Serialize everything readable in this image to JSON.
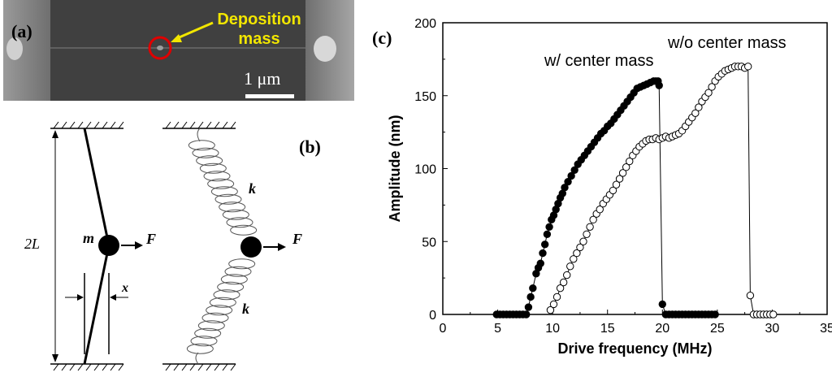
{
  "panel_a": {
    "label": "(a)",
    "annotation_line1": "Deposition",
    "annotation_line2": "mass",
    "scale_bar": "1 μm"
  },
  "panel_b": {
    "label": "(b)",
    "length_label": "2L",
    "mass_label": "m",
    "force_label_left": "F",
    "force_label_right": "F",
    "displacement_label": "x",
    "spring_label_top": "k",
    "spring_label_bottom": "k"
  },
  "panel_c": {
    "label": "(c)",
    "annotation_with": "w/ center mass",
    "annotation_without": "w/o center mass"
  },
  "chart_data": {
    "type": "scatter",
    "xlabel": "Drive frequency (MHz)",
    "ylabel": "Amplitude (nm)",
    "xlim": [
      0,
      35
    ],
    "ylim": [
      0,
      200
    ],
    "xticks": [
      0,
      5,
      10,
      15,
      20,
      25,
      30,
      35
    ],
    "yticks": [
      0,
      50,
      100,
      150,
      200
    ],
    "grid": false,
    "series": [
      {
        "marker": "filled-circle",
        "color": "#000000",
        "x": [
          4.9,
          5.2,
          5.5,
          5.8,
          6.1,
          6.4,
          6.7,
          7.0,
          7.3,
          7.6,
          7.8,
          8.0,
          8.2,
          8.5,
          8.7,
          8.9,
          9.1,
          9.3,
          9.5,
          9.7,
          9.9,
          10.1,
          10.3,
          10.5,
          10.7,
          10.9,
          11.1,
          11.4,
          11.7,
          12.0,
          12.3,
          12.6,
          12.9,
          13.2,
          13.5,
          13.8,
          14.1,
          14.4,
          14.7,
          15.0,
          15.3,
          15.6,
          15.9,
          16.2,
          16.5,
          16.8,
          17.1,
          17.4,
          17.7,
          18.0,
          18.3,
          18.6,
          18.9,
          19.2,
          19.4,
          19.6,
          19.7,
          20.0,
          20.3,
          20.6,
          20.9,
          21.2,
          21.5,
          21.8,
          22.1,
          22.4,
          22.7,
          23.0,
          23.3,
          23.6,
          23.9,
          24.2,
          24.5,
          24.8
        ],
        "y": [
          0,
          0,
          0,
          0,
          0,
          0,
          0,
          0,
          0,
          0,
          5,
          12,
          18,
          28,
          32,
          35,
          42,
          48,
          55,
          60,
          65,
          68,
          72,
          76,
          80,
          83,
          87,
          91,
          95,
          99,
          103,
          106,
          109,
          112,
          115,
          118,
          121,
          124,
          126,
          129,
          131,
          134,
          137,
          140,
          143,
          146,
          149,
          152,
          155,
          156,
          157,
          158,
          159,
          160,
          160,
          160,
          157,
          7,
          0,
          0,
          0,
          0,
          0,
          0,
          0,
          0,
          0,
          0,
          0,
          0,
          0,
          0,
          0,
          0
        ]
      },
      {
        "marker": "open-circle",
        "color": "#000000",
        "x": [
          9.8,
          10.1,
          10.4,
          10.7,
          11.0,
          11.3,
          11.6,
          11.9,
          12.2,
          12.5,
          12.8,
          13.1,
          13.4,
          13.7,
          14.0,
          14.3,
          14.6,
          14.9,
          15.2,
          15.5,
          15.8,
          16.1,
          16.4,
          16.7,
          17.0,
          17.3,
          17.6,
          17.9,
          18.2,
          18.5,
          18.8,
          19.1,
          19.4,
          19.7,
          20.0,
          20.3,
          20.6,
          20.9,
          21.2,
          21.5,
          21.8,
          22.1,
          22.4,
          22.7,
          23.0,
          23.3,
          23.6,
          23.9,
          24.2,
          24.5,
          24.8,
          25.1,
          25.4,
          25.7,
          26.0,
          26.3,
          26.6,
          26.9,
          27.2,
          27.5,
          27.8,
          28.0,
          28.3,
          28.6,
          28.9,
          29.2,
          29.5,
          29.8,
          30.1
        ],
        "y": [
          3,
          7,
          12,
          18,
          22,
          27,
          33,
          38,
          42,
          46,
          50,
          55,
          60,
          65,
          69,
          72,
          76,
          79,
          82,
          85,
          89,
          93,
          97,
          101,
          105,
          109,
          112,
          115,
          117,
          119,
          120,
          120,
          121,
          120,
          121,
          122,
          121,
          122,
          123,
          124,
          126,
          129,
          132,
          135,
          138,
          142,
          146,
          149,
          152,
          156,
          160,
          163,
          165,
          167,
          168,
          169,
          170,
          170,
          170,
          169,
          170,
          13,
          0,
          0,
          0,
          0,
          0,
          0,
          0
        ]
      }
    ]
  }
}
